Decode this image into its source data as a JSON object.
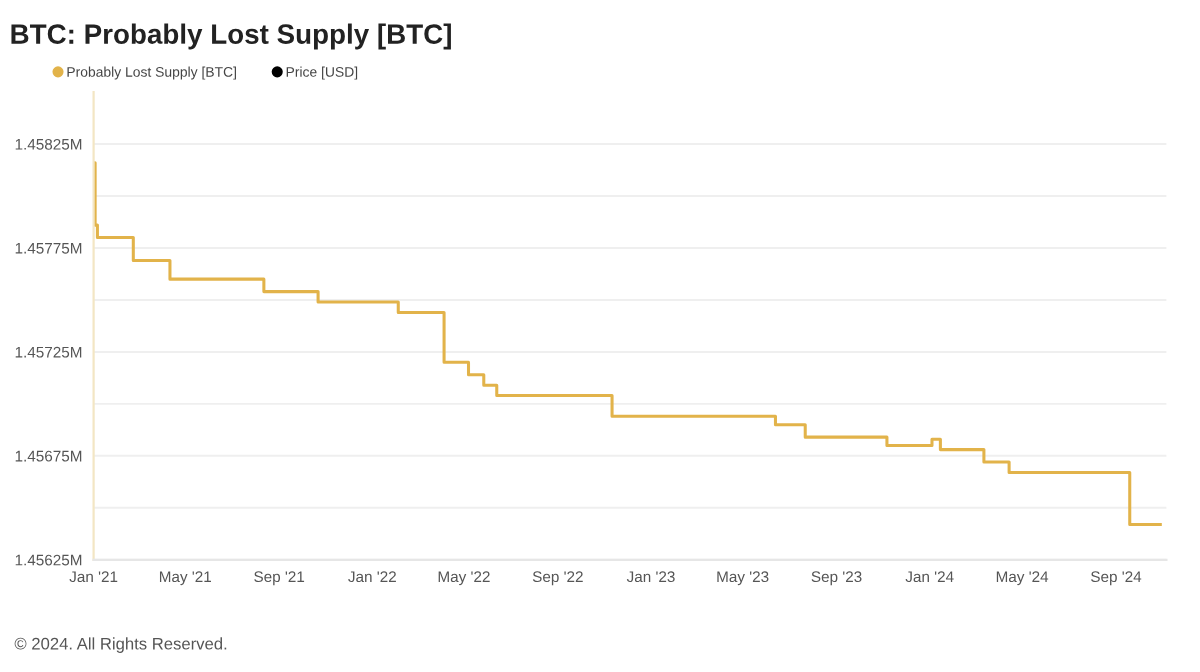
{
  "chart_data": {
    "type": "step",
    "title": "BTC: Probably Lost Supply [BTC]",
    "x": [
      "2021-01-01",
      "2021-01-03",
      "2021-01-06",
      "2021-02-22",
      "2021-04-11",
      "2021-08-12",
      "2021-10-22",
      "2022-02-04",
      "2022-04-05",
      "2022-05-07",
      "2022-05-27",
      "2022-06-13",
      "2022-11-11",
      "2023-06-13",
      "2023-07-22",
      "2023-11-06",
      "2024-01-04",
      "2024-01-15",
      "2024-03-12",
      "2024-04-14",
      "2024-09-19",
      "2024-10-29"
    ],
    "series": [
      {
        "name": "Probably Lost Supply [BTC]",
        "color": "#e2b34a",
        "values": [
          1.45816,
          1.45786,
          1.4578,
          1.45769,
          1.4576,
          1.45754,
          1.45749,
          1.45744,
          1.4572,
          1.45714,
          1.45709,
          1.45704,
          1.45694,
          1.4569,
          1.45684,
          1.4568,
          1.45683,
          1.45678,
          1.45672,
          1.45667,
          1.45642,
          1.45642
        ]
      },
      {
        "name": "Price [USD]",
        "color": "#000000",
        "values": [
          null,
          null,
          null,
          null,
          null,
          null,
          null,
          null,
          null,
          null,
          null,
          null,
          null,
          null,
          null,
          null,
          null,
          null,
          null,
          null,
          null,
          null
        ]
      }
    ],
    "xlim": [
      "2021-01-01",
      "2024-11-06"
    ],
    "xticks": [
      {
        "value": "2021-01-01",
        "label": "Jan '21"
      },
      {
        "value": "2021-05-01",
        "label": "May '21"
      },
      {
        "value": "2021-09-01",
        "label": "Sep '21"
      },
      {
        "value": "2022-01-01",
        "label": "Jan '22"
      },
      {
        "value": "2022-05-01",
        "label": "May '22"
      },
      {
        "value": "2022-09-01",
        "label": "Sep '22"
      },
      {
        "value": "2023-01-01",
        "label": "Jan '23"
      },
      {
        "value": "2023-05-01",
        "label": "May '23"
      },
      {
        "value": "2023-09-01",
        "label": "Sep '23"
      },
      {
        "value": "2024-01-01",
        "label": "Jan '24"
      },
      {
        "value": "2024-05-01",
        "label": "May '24"
      },
      {
        "value": "2024-09-01",
        "label": "Sep '24"
      }
    ],
    "ylim": [
      1.45625,
      1.4585
    ],
    "yticks": [
      {
        "value": 1.45625,
        "label": "1.45625M"
      },
      {
        "value": 1.4565,
        "label": null
      },
      {
        "value": 1.45675,
        "label": "1.45675M"
      },
      {
        "value": 1.457,
        "label": null
      },
      {
        "value": 1.45725,
        "label": "1.45725M"
      },
      {
        "value": 1.4575,
        "label": null
      },
      {
        "value": 1.45775,
        "label": "1.45775M"
      },
      {
        "value": 1.458,
        "label": null
      },
      {
        "value": 1.45825,
        "label": "1.45825M"
      }
    ],
    "grid": "y",
    "legend": "top left",
    "line_style": "solid",
    "annotations": [
      "© 2024. All Rights Reserved."
    ]
  }
}
